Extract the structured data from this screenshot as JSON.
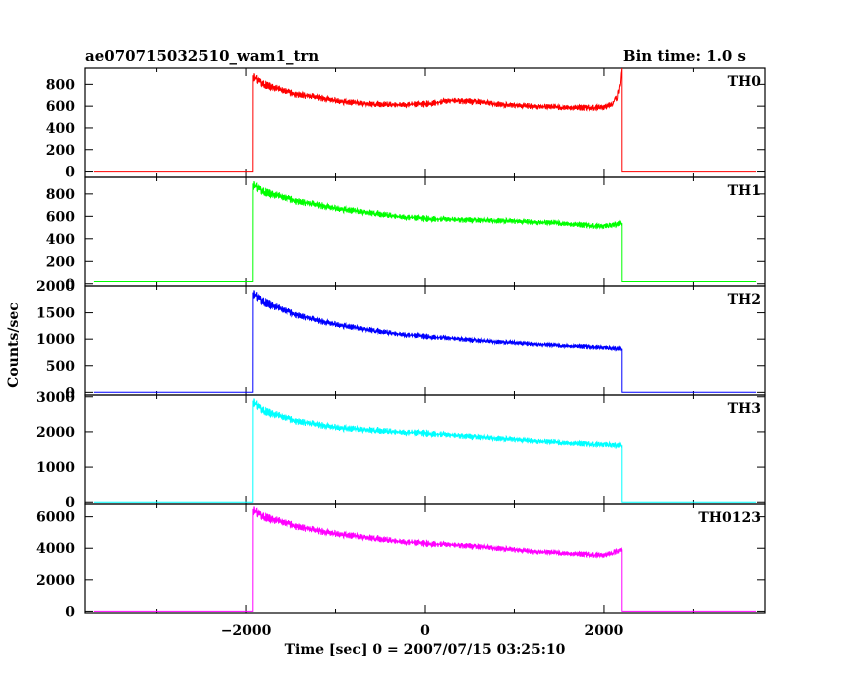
{
  "chart_data": {
    "type": "line",
    "title": "ae070715032510_wam1_trn",
    "bin_time": "Bin time: 1.0 s",
    "xlabel": "Time [sec] 0 = 2007/07/15 03:25:10",
    "ylabel": "Counts/sec",
    "xlim": [
      -3800,
      3800
    ],
    "xticks": [
      -2000,
      0,
      2000
    ],
    "xtick_labels": [
      "−2000",
      "0",
      "2000"
    ],
    "grid": false,
    "panels": [
      {
        "name": "TH0",
        "color": "#ff0000",
        "ylim": [
          -50,
          950
        ],
        "yticks": [
          0,
          200,
          400,
          600,
          800
        ],
        "x": [
          -3700,
          -1925,
          -1924,
          -1800,
          -1500,
          -1200,
          -900,
          -600,
          -300,
          0,
          300,
          600,
          900,
          1200,
          1500,
          1800,
          2000,
          2100,
          2150,
          2180,
          2199,
          2200,
          3700
        ],
        "y": [
          0,
          0,
          870,
          800,
          720,
          680,
          640,
          620,
          615,
          620,
          650,
          640,
          610,
          600,
          590,
          585,
          590,
          620,
          680,
          800,
          950,
          0,
          0
        ]
      },
      {
        "name": "TH1",
        "color": "#00ff00",
        "ylim": [
          -20,
          950
        ],
        "yticks": [
          0,
          200,
          400,
          600,
          800
        ],
        "x": [
          -3700,
          -1925,
          -1924,
          -1800,
          -1500,
          -1200,
          -900,
          -600,
          -300,
          0,
          300,
          600,
          900,
          1200,
          1500,
          1800,
          2000,
          2199,
          2200,
          3700
        ],
        "y": [
          20,
          20,
          880,
          820,
          750,
          700,
          660,
          630,
          600,
          580,
          570,
          565,
          560,
          550,
          540,
          520,
          510,
          540,
          20,
          20
        ]
      },
      {
        "name": "TH2",
        "color": "#0000ff",
        "ylim": [
          -50,
          2000
        ],
        "yticks": [
          0,
          500,
          1000,
          1500,
          2000
        ],
        "x": [
          -3700,
          -1925,
          -1924,
          -1800,
          -1500,
          -1200,
          -900,
          -600,
          -300,
          0,
          300,
          600,
          900,
          1200,
          1500,
          1800,
          2000,
          2199,
          2200,
          3700
        ],
        "y": [
          0,
          0,
          1850,
          1700,
          1500,
          1350,
          1250,
          1170,
          1100,
          1050,
          1010,
          970,
          940,
          910,
          880,
          860,
          840,
          820,
          0,
          0
        ]
      },
      {
        "name": "TH3",
        "color": "#00ffff",
        "ylim": [
          -50,
          3050
        ],
        "yticks": [
          0,
          1000,
          2000,
          3000
        ],
        "x": [
          -3700,
          -1925,
          -1924,
          -1800,
          -1500,
          -1200,
          -900,
          -600,
          -300,
          0,
          300,
          600,
          900,
          1200,
          1500,
          1800,
          2000,
          2199,
          2200,
          3700
        ],
        "y": [
          0,
          0,
          2850,
          2600,
          2350,
          2200,
          2100,
          2050,
          2000,
          1960,
          1900,
          1850,
          1800,
          1750,
          1700,
          1660,
          1640,
          1620,
          0,
          0
        ]
      },
      {
        "name": "TH0123",
        "color": "#ff00ff",
        "ylim": [
          -100,
          6800
        ],
        "yticks": [
          0,
          2000,
          4000,
          6000
        ],
        "x": [
          -3700,
          -1925,
          -1924,
          -1800,
          -1500,
          -1200,
          -900,
          -600,
          -300,
          0,
          300,
          600,
          900,
          1200,
          1500,
          1800,
          2000,
          2100,
          2199,
          2200,
          3700
        ],
        "y": [
          0,
          0,
          6400,
          6000,
          5500,
          5100,
          4850,
          4650,
          4450,
          4300,
          4200,
          4100,
          3950,
          3800,
          3700,
          3600,
          3550,
          3700,
          3900,
          0,
          0
        ]
      }
    ]
  }
}
